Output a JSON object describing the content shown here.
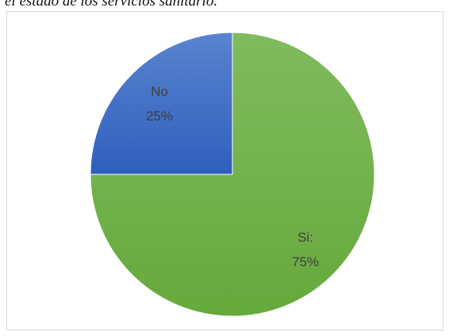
{
  "caption": "el estado de los servicios sanitario.",
  "chart_data": {
    "type": "pie",
    "categories": [
      "Si:",
      "No"
    ],
    "values": [
      75,
      25
    ],
    "value_labels": [
      "75%",
      "25%"
    ],
    "colors": [
      "#70ad47",
      "#4472c4"
    ],
    "title": "",
    "legend": "none"
  }
}
